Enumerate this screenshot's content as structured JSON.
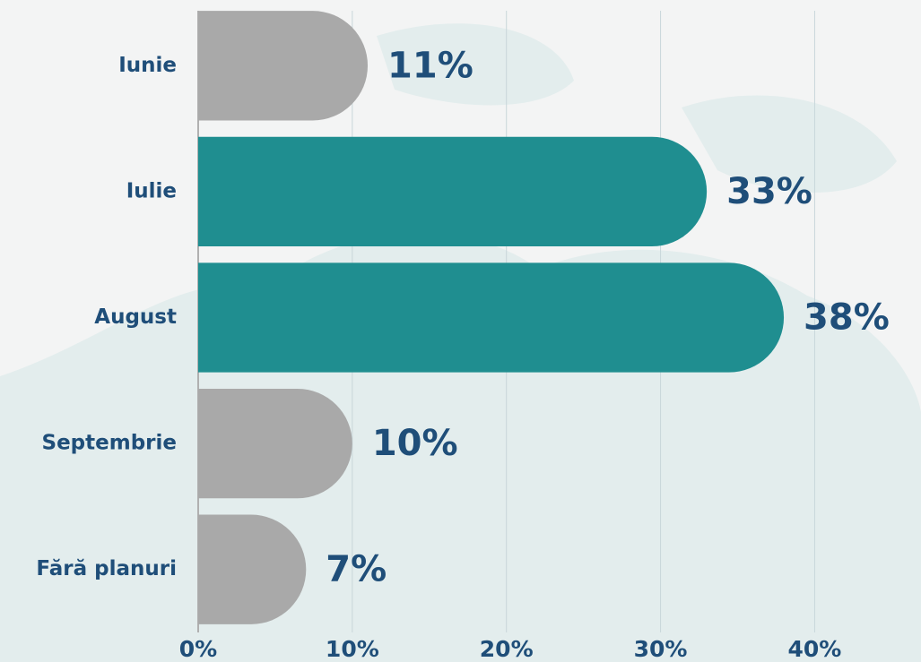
{
  "chart_data": {
    "type": "bar",
    "orientation": "horizontal",
    "categories": [
      "Iunie",
      "Iulie",
      "August",
      "Septembrie",
      "Fără planuri"
    ],
    "values": [
      11,
      33,
      38,
      10,
      7
    ],
    "value_labels": [
      "11%",
      "33%",
      "38%",
      "10%",
      "7%"
    ],
    "colors": [
      "#a9a9a9",
      "#1f8e90",
      "#1f8e90",
      "#a9a9a9",
      "#a9a9a9"
    ],
    "xlim": [
      0,
      46.9
    ],
    "xticks": [
      {
        "value": 0,
        "label": "0%"
      },
      {
        "value": 10,
        "label": "10%"
      },
      {
        "value": 20,
        "label": "20%"
      },
      {
        "value": 30,
        "label": "30%"
      },
      {
        "value": 40,
        "label": "40%"
      }
    ],
    "grid": true
  }
}
